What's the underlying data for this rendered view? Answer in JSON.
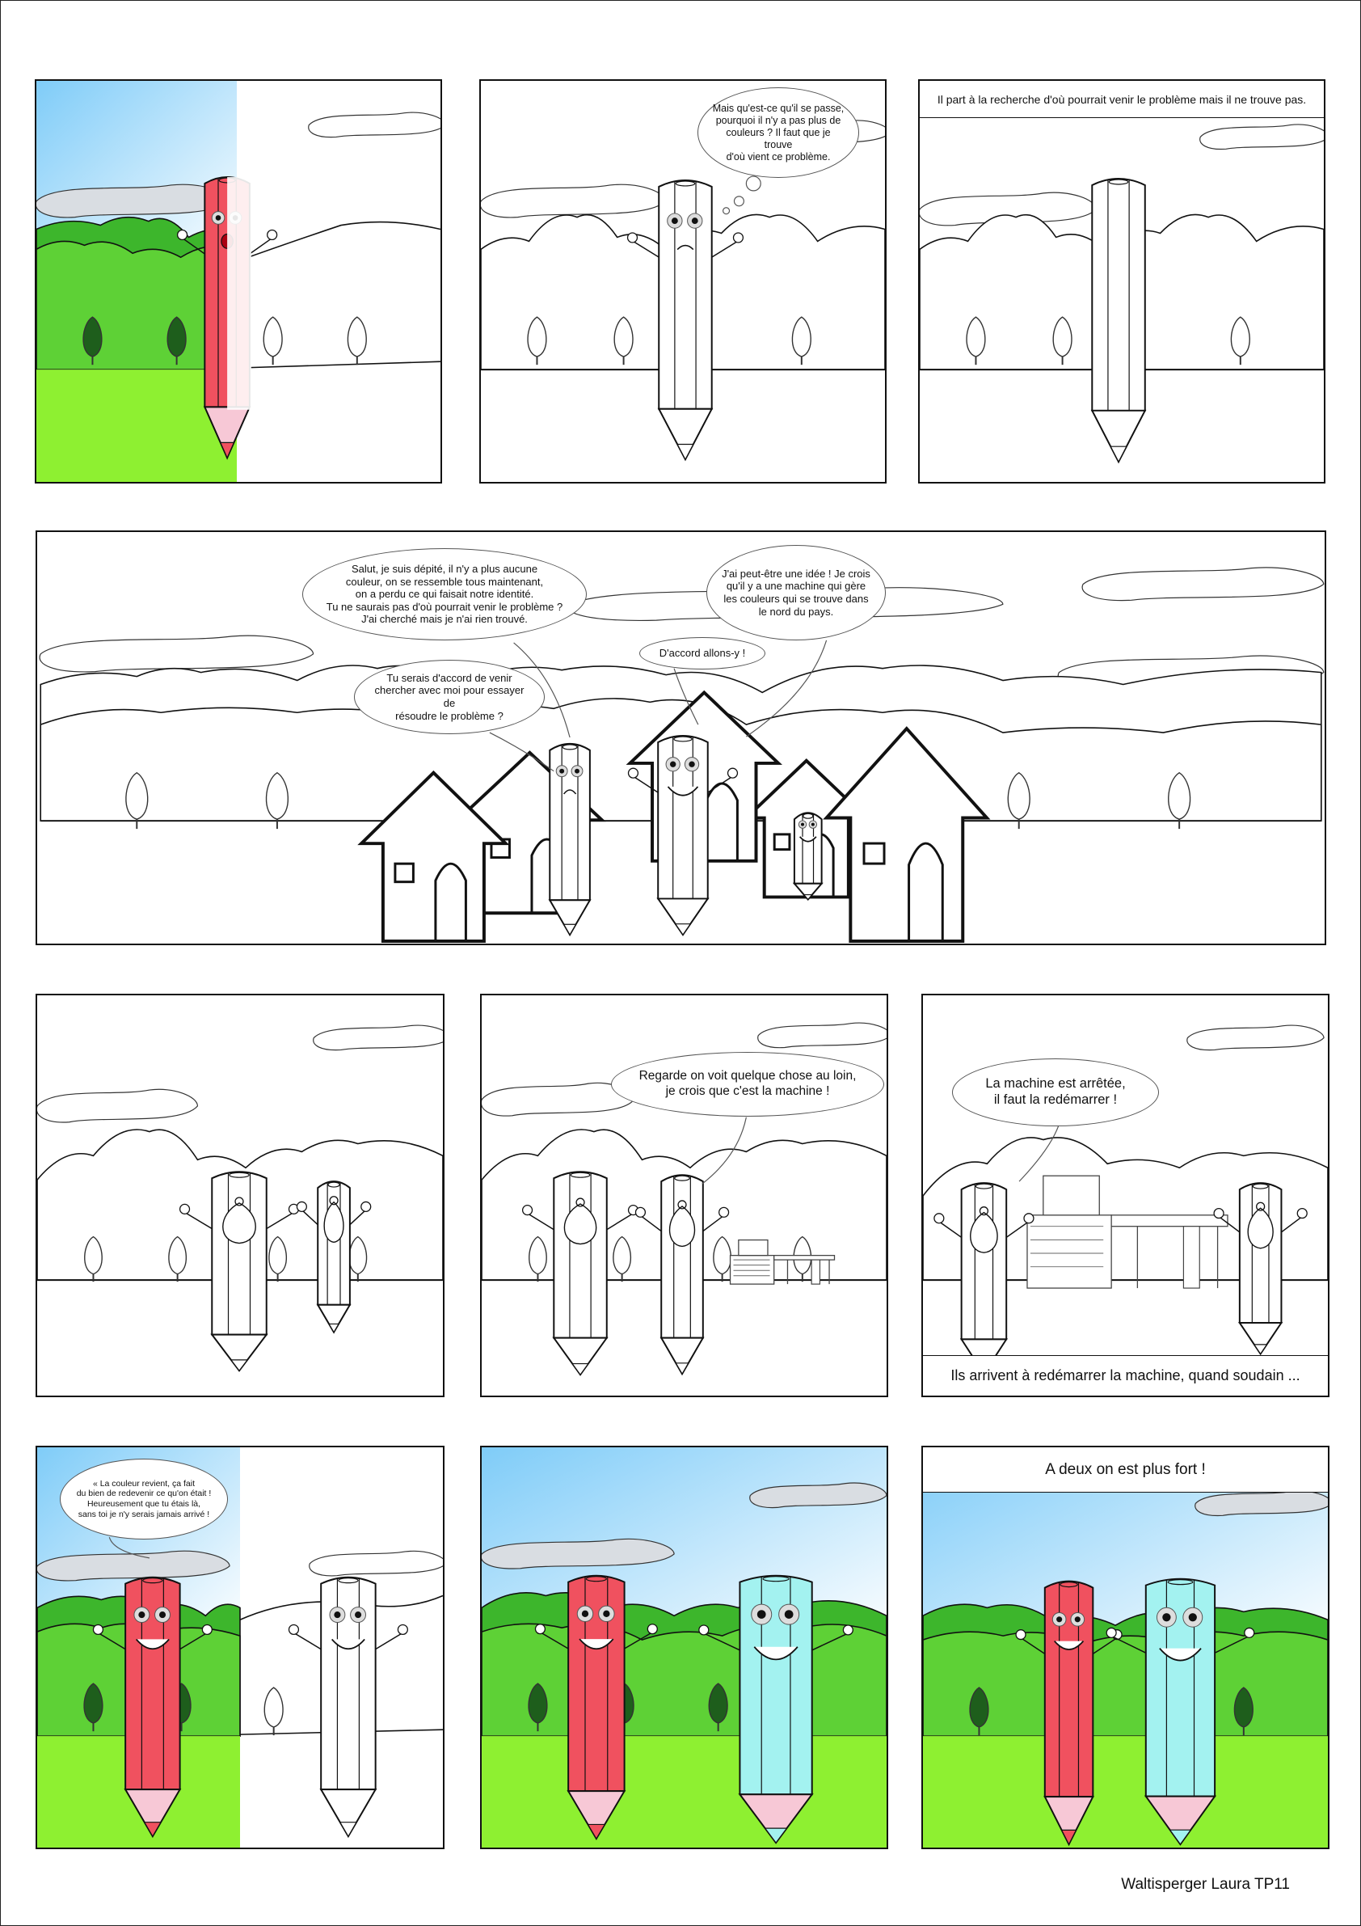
{
  "colors": {
    "red_pencil": "#f0515f",
    "blue_pencil": "#a3f2f0",
    "pink_tip": "#f7c8d6",
    "grass": "#8ef031",
    "mountain_light": "#5ed136",
    "mountain_dark": "#3db62c",
    "tree": "#1e5e1c",
    "sky": "#7fccf8",
    "cloud": "#d9dde2"
  },
  "icons": [
    "pencil-character-icon",
    "house-icon",
    "tree-icon",
    "mountain-icon",
    "cloud-icon",
    "machine-icon",
    "bindle-icon"
  ],
  "panels": {
    "p1": {},
    "p2": {
      "bubble": "Mais qu'est-ce qu'il se passe,\npourquoi il n'y a pas plus de\ncouleurs ? Il faut que je trouve\nd'où vient ce problème."
    },
    "p3": {
      "caption": "Il part à la recherche d'où pourrait venir le problème mais il ne trouve pas."
    },
    "p4": {
      "bubble1": "Salut, je suis dépité, il n'y a plus aucune\ncouleur, on se ressemble tous maintenant,\non a perdu ce qui faisait notre identité.\nTu ne saurais pas d'où pourrait venir le problème ?\nJ'ai cherché mais je n'ai rien trouvé.",
      "bubble2": "J'ai peut-être une idée ! Je crois\nqu'il y a une machine qui gère\nles couleurs qui se trouve dans\nle nord du pays.",
      "bubble3": "D'accord allons-y !",
      "bubble4": "Tu serais d'accord de venir\nchercher avec moi pour essayer de\nrésoudre le problème ?"
    },
    "p5": {},
    "p6": {
      "bubble": "Regarde on voit quelque chose au loin,\nje crois que c'est la machine !"
    },
    "p7": {
      "bubble": "La machine est arrêtée,\nil faut la redémarrer !",
      "caption": "Ils arrivent à redémarrer la machine, quand soudain ..."
    },
    "p8": {
      "bubble": "« La couleur revient, ça fait\ndu bien de redevenir ce qu'on était !\nHeureusement que tu étais là,\nsans toi je n'y serais jamais arrivé !"
    },
    "p9": {},
    "p10": {
      "caption": "A deux on est plus fort !"
    }
  },
  "signature": "Waltisperger Laura TP11"
}
